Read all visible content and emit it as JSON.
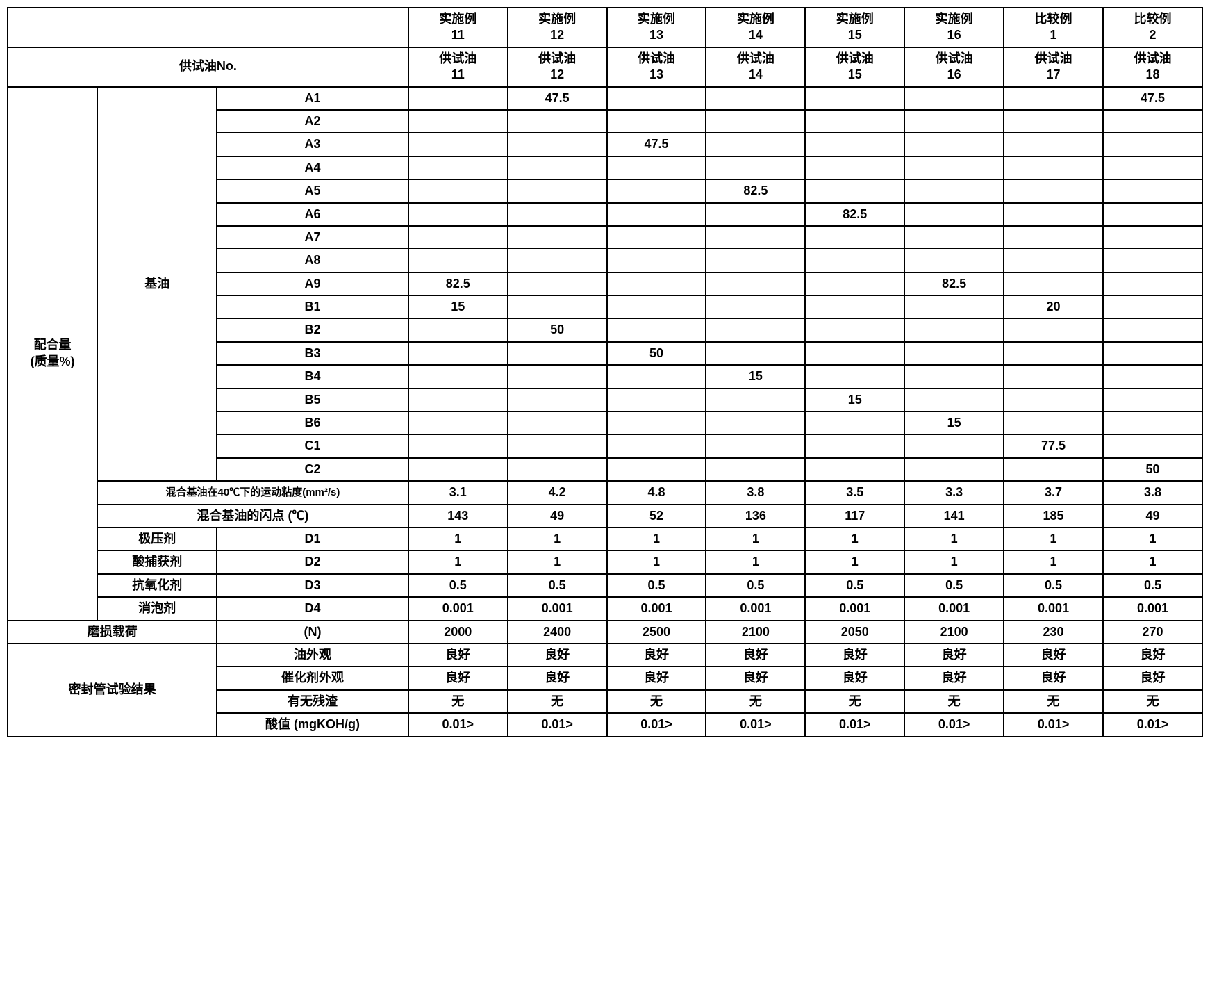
{
  "headers": {
    "row1": [
      "实施例\n11",
      "实施例\n12",
      "实施例\n13",
      "实施例\n14",
      "实施例\n15",
      "实施例\n16",
      "比较例\n1",
      "比较例\n2"
    ],
    "test_oil_label": "供试油No.",
    "row2": [
      "供试油\n11",
      "供试油\n12",
      "供试油\n13",
      "供试油\n14",
      "供试油\n15",
      "供试油\n16",
      "供试油\n17",
      "供试油\n18"
    ]
  },
  "left_labels": {
    "mix_amount": "配合量\n(质量%)",
    "base_oil": "基油",
    "kinematic_viscosity": "混合基油在40℃下的运动粘度(mm²/s)",
    "flash_point": "混合基油的闪点 (℃)",
    "ep_agent": "极压剂",
    "acid_scavenger": "酸捕获剂",
    "antioxidant": "抗氧化剂",
    "defoamer": "消泡剂",
    "wear_load": "磨损载荷",
    "wear_load_unit": "(N)",
    "sealed_tube": "密封管试验结果",
    "oil_appearance": "油外观",
    "catalyst_appearance": "催化剂外观",
    "residue": "有无残渣",
    "acid_value": "酸值 (mgKOH/g)"
  },
  "base_oil_rows": [
    {
      "label": "A1",
      "values": [
        "",
        "47.5",
        "",
        "",
        "",
        "",
        "",
        "47.5"
      ]
    },
    {
      "label": "A2",
      "values": [
        "",
        "",
        "",
        "",
        "",
        "",
        "",
        ""
      ]
    },
    {
      "label": "A3",
      "values": [
        "",
        "",
        "47.5",
        "",
        "",
        "",
        "",
        ""
      ]
    },
    {
      "label": "A4",
      "values": [
        "",
        "",
        "",
        "",
        "",
        "",
        "",
        ""
      ]
    },
    {
      "label": "A5",
      "values": [
        "",
        "",
        "",
        "82.5",
        "",
        "",
        "",
        ""
      ]
    },
    {
      "label": "A6",
      "values": [
        "",
        "",
        "",
        "",
        "82.5",
        "",
        "",
        ""
      ]
    },
    {
      "label": "A7",
      "values": [
        "",
        "",
        "",
        "",
        "",
        "",
        "",
        ""
      ]
    },
    {
      "label": "A8",
      "values": [
        "",
        "",
        "",
        "",
        "",
        "",
        "",
        ""
      ]
    },
    {
      "label": "A9",
      "values": [
        "82.5",
        "",
        "",
        "",
        "",
        "82.5",
        "",
        ""
      ]
    },
    {
      "label": "B1",
      "values": [
        "15",
        "",
        "",
        "",
        "",
        "",
        "20",
        ""
      ]
    },
    {
      "label": "B2",
      "values": [
        "",
        "50",
        "",
        "",
        "",
        "",
        "",
        ""
      ]
    },
    {
      "label": "B3",
      "values": [
        "",
        "",
        "50",
        "",
        "",
        "",
        "",
        ""
      ]
    },
    {
      "label": "B4",
      "values": [
        "",
        "",
        "",
        "15",
        "",
        "",
        "",
        ""
      ]
    },
    {
      "label": "B5",
      "values": [
        "",
        "",
        "",
        "",
        "15",
        "",
        "",
        ""
      ]
    },
    {
      "label": "B6",
      "values": [
        "",
        "",
        "",
        "",
        "",
        "15",
        "",
        ""
      ]
    },
    {
      "label": "C1",
      "values": [
        "",
        "",
        "",
        "",
        "",
        "",
        "77.5",
        ""
      ]
    },
    {
      "label": "C2",
      "values": [
        "",
        "",
        "",
        "",
        "",
        "",
        "",
        "50"
      ]
    }
  ],
  "property_rows": {
    "viscosity": [
      "3.1",
      "4.2",
      "4.8",
      "3.8",
      "3.5",
      "3.3",
      "3.7",
      "3.8"
    ],
    "flash_point": [
      "143",
      "49",
      "52",
      "136",
      "117",
      "141",
      "185",
      "49"
    ]
  },
  "additive_rows": [
    {
      "label": "D1",
      "values": [
        "1",
        "1",
        "1",
        "1",
        "1",
        "1",
        "1",
        "1"
      ]
    },
    {
      "label": "D2",
      "values": [
        "1",
        "1",
        "1",
        "1",
        "1",
        "1",
        "1",
        "1"
      ]
    },
    {
      "label": "D3",
      "values": [
        "0.5",
        "0.5",
        "0.5",
        "0.5",
        "0.5",
        "0.5",
        "0.5",
        "0.5"
      ]
    },
    {
      "label": "D4",
      "values": [
        "0.001",
        "0.001",
        "0.001",
        "0.001",
        "0.001",
        "0.001",
        "0.001",
        "0.001"
      ]
    }
  ],
  "wear_load": [
    "2000",
    "2400",
    "2500",
    "2100",
    "2050",
    "2100",
    "230",
    "270"
  ],
  "sealed": {
    "oil": [
      "良好",
      "良好",
      "良好",
      "良好",
      "良好",
      "良好",
      "良好",
      "良好"
    ],
    "catalyst": [
      "良好",
      "良好",
      "良好",
      "良好",
      "良好",
      "良好",
      "良好",
      "良好"
    ],
    "residue": [
      "无",
      "无",
      "无",
      "无",
      "无",
      "无",
      "无",
      "无"
    ],
    "acid": [
      "0.01>",
      "0.01>",
      "0.01>",
      "0.01>",
      "0.01>",
      "0.01>",
      "0.01>",
      "0.01>"
    ]
  }
}
